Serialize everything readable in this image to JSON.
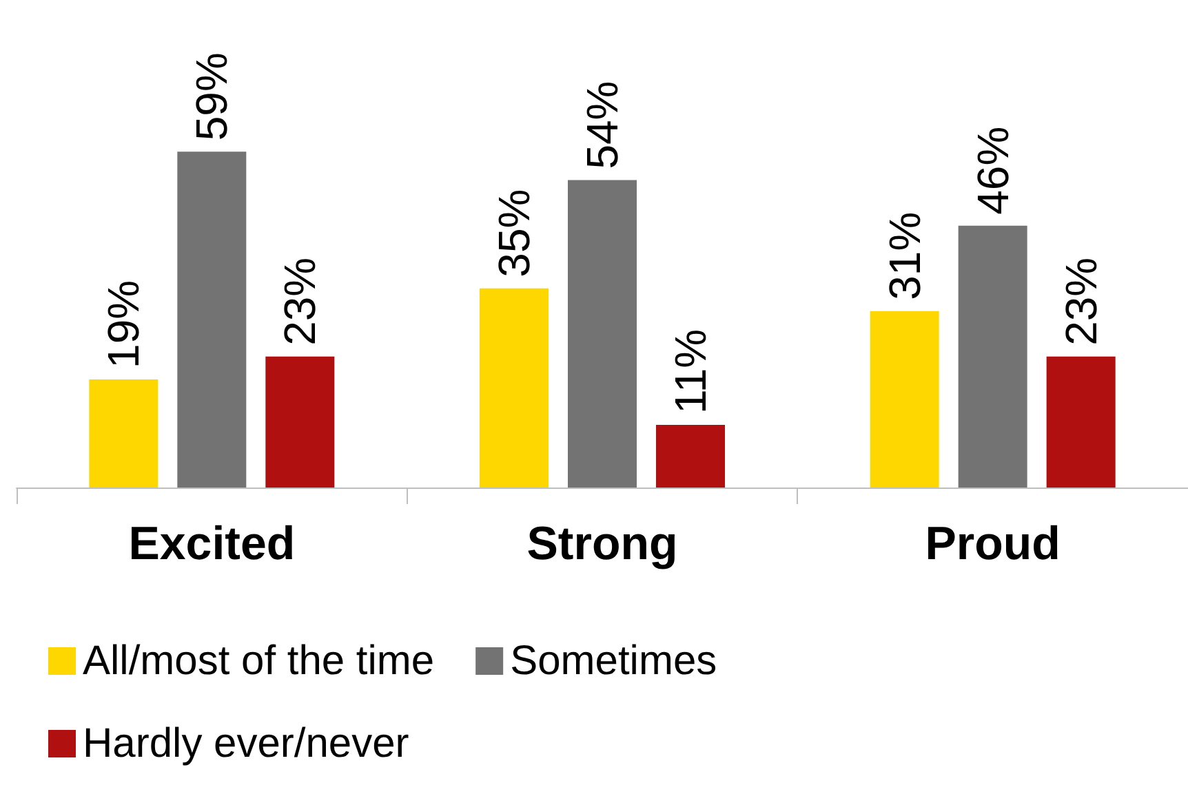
{
  "chart_data": {
    "type": "bar",
    "categories": [
      "Excited",
      "Strong",
      "Proud"
    ],
    "series": [
      {
        "name": "All/most of the time",
        "color": "#ffd700",
        "values": [
          19,
          35,
          31
        ],
        "value_labels": [
          "19%",
          "35%",
          "31%"
        ]
      },
      {
        "name": "Sometimes",
        "color": "#737373",
        "values": [
          59,
          54,
          46
        ],
        "value_labels": [
          "59%",
          "54%",
          "46%"
        ]
      },
      {
        "name": "Hardly ever/never",
        "color": "#b01010",
        "values": [
          23,
          11,
          23
        ],
        "value_labels": [
          "23%",
          "11%",
          "23%"
        ]
      }
    ],
    "legend": "bottom left",
    "grid": false
  }
}
